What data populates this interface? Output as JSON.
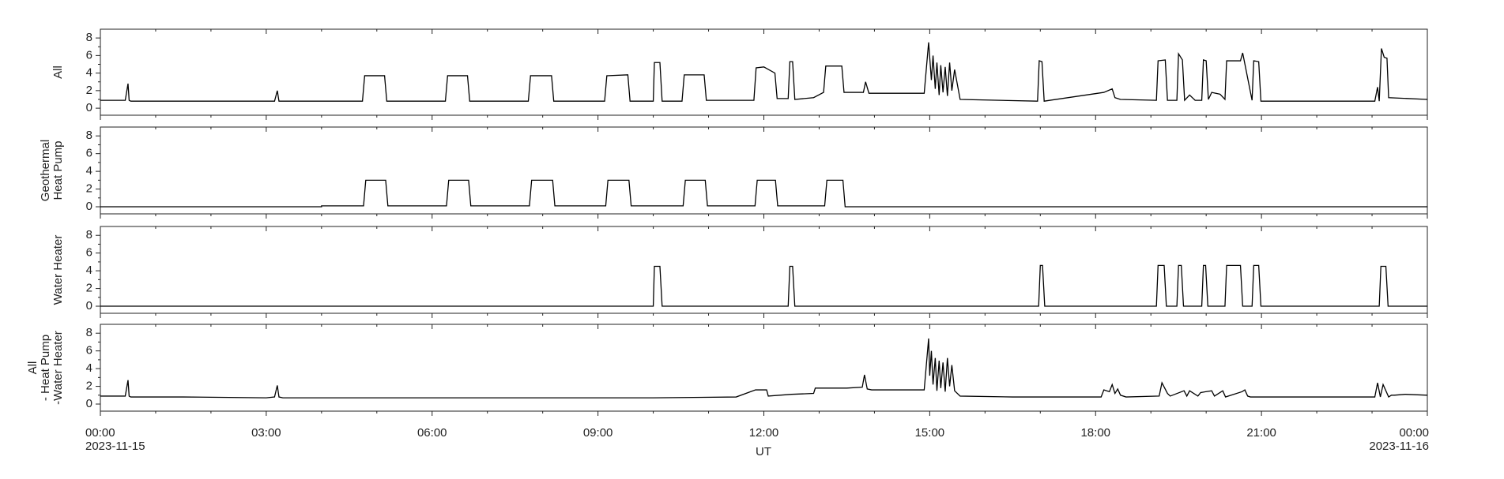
{
  "x_axis": {
    "xlim": [
      0,
      24
    ],
    "xticks": [
      {
        "value": 0,
        "label": "00:00"
      },
      {
        "value": 3,
        "label": "03:00"
      },
      {
        "value": 6,
        "label": "06:00"
      },
      {
        "value": 9,
        "label": "09:00"
      },
      {
        "value": 12,
        "label": "12:00"
      },
      {
        "value": 15,
        "label": "15:00"
      },
      {
        "value": 18,
        "label": "18:00"
      },
      {
        "value": 21,
        "label": "21:00"
      },
      {
        "value": 24,
        "label": "00:00"
      }
    ],
    "minor_xticks": [
      1,
      2,
      4,
      5,
      7,
      8,
      10,
      11,
      13,
      14,
      16,
      17,
      19,
      20,
      22,
      23
    ],
    "label": "UT",
    "start_date": "2023-11-15",
    "end_date": "2023-11-16"
  },
  "chart_data": [
    {
      "type": "line",
      "ylabel": [
        "All"
      ],
      "ylim": [
        -0.8,
        9
      ],
      "yticks": [
        0,
        2,
        4,
        6,
        8
      ],
      "minor_yticks": [
        1,
        3,
        5,
        7
      ],
      "color": "#000000",
      "x": [
        0,
        0.45,
        0.5,
        0.52,
        0.55,
        3.15,
        3.2,
        3.23,
        4.74,
        4.78,
        5.14,
        5.18,
        6.24,
        6.28,
        6.64,
        6.68,
        7.74,
        7.78,
        8.16,
        8.2,
        9.12,
        9.16,
        9.54,
        9.58,
        10.0,
        10.02,
        10.12,
        10.16,
        10.52,
        10.56,
        10.92,
        10.96,
        11.82,
        11.86,
        12.0,
        12.2,
        12.24,
        12.44,
        12.47,
        12.52,
        12.56,
        12.9,
        13.08,
        13.12,
        13.41,
        13.45,
        13.8,
        13.84,
        13.9,
        14.9,
        14.98,
        15.03,
        15.06,
        15.1,
        15.13,
        15.17,
        15.2,
        15.24,
        15.28,
        15.32,
        15.36,
        15.4,
        15.45,
        15.55,
        16.95,
        16.98,
        17.03,
        17.07,
        18.15,
        18.3,
        18.35,
        18.45,
        19.1,
        19.13,
        19.26,
        19.3,
        19.47,
        19.5,
        19.57,
        19.61,
        19.7,
        19.8,
        19.92,
        19.95,
        20.0,
        20.04,
        20.1,
        20.25,
        20.34,
        20.37,
        20.62,
        20.66,
        20.83,
        20.86,
        20.95,
        20.99,
        23.05,
        23.1,
        23.13,
        23.17,
        23.22,
        23.27,
        23.3,
        24
      ],
      "values": [
        0.9,
        0.9,
        2.8,
        0.9,
        0.8,
        0.8,
        2.0,
        0.8,
        0.8,
        3.7,
        3.7,
        0.8,
        0.8,
        3.7,
        3.7,
        0.8,
        0.8,
        3.7,
        3.7,
        0.8,
        0.8,
        3.7,
        3.8,
        0.8,
        0.8,
        5.2,
        5.2,
        0.8,
        0.8,
        3.8,
        3.8,
        0.9,
        0.9,
        4.6,
        4.7,
        4.0,
        1.1,
        1.1,
        5.3,
        5.3,
        1.0,
        1.2,
        1.8,
        4.8,
        4.8,
        1.8,
        1.8,
        3.0,
        1.7,
        1.7,
        7.5,
        3.2,
        6.0,
        2.2,
        5.2,
        1.5,
        4.9,
        1.8,
        4.7,
        1.4,
        5.2,
        2.0,
        4.4,
        1.0,
        0.8,
        5.4,
        5.3,
        0.8,
        1.8,
        2.2,
        1.2,
        1.0,
        0.9,
        5.4,
        5.5,
        0.9,
        0.9,
        6.2,
        5.5,
        0.9,
        1.5,
        0.9,
        0.9,
        5.5,
        5.4,
        1.0,
        1.8,
        1.6,
        1.0,
        5.4,
        5.4,
        6.3,
        0.9,
        5.4,
        5.3,
        0.8,
        0.8,
        2.4,
        0.8,
        6.8,
        5.8,
        5.7,
        1.2,
        1.0
      ]
    },
    {
      "type": "line",
      "ylabel": [
        "Geothermal",
        "Heat Pump"
      ],
      "ylim": [
        -0.8,
        9
      ],
      "yticks": [
        0,
        2,
        4,
        6,
        8
      ],
      "minor_yticks": [
        1,
        3,
        5,
        7
      ],
      "color": "#000000",
      "x": [
        0,
        4.0,
        4.0,
        4.76,
        4.8,
        5.16,
        5.2,
        6.26,
        6.3,
        6.66,
        6.7,
        7.76,
        7.8,
        8.18,
        8.22,
        9.14,
        9.18,
        9.56,
        9.6,
        10.54,
        10.58,
        10.94,
        10.98,
        11.84,
        11.88,
        12.21,
        12.25,
        13.1,
        13.14,
        13.43,
        13.47,
        24
      ],
      "values": [
        0,
        0,
        0.1,
        0.1,
        3.0,
        3.0,
        0.1,
        0.1,
        3.0,
        3.0,
        0.1,
        0.1,
        3.0,
        3.0,
        0.1,
        0.1,
        3.0,
        3.0,
        0.1,
        0.1,
        3.0,
        3.0,
        0.1,
        0.1,
        3.0,
        3.0,
        0.1,
        0.1,
        3.0,
        3.0,
        0,
        0
      ]
    },
    {
      "type": "line",
      "ylabel": [
        "Water Heater"
      ],
      "ylim": [
        -0.8,
        9
      ],
      "yticks": [
        0,
        2,
        4,
        6,
        8
      ],
      "minor_yticks": [
        1,
        3,
        5,
        7
      ],
      "color": "#000000",
      "x": [
        0,
        10.0,
        10.02,
        10.12,
        10.16,
        12.44,
        12.47,
        12.52,
        12.56,
        16.97,
        17.0,
        17.04,
        17.08,
        19.1,
        19.13,
        19.24,
        19.28,
        19.47,
        19.5,
        19.55,
        19.59,
        19.92,
        19.95,
        19.99,
        20.03,
        20.34,
        20.37,
        20.62,
        20.66,
        20.83,
        20.86,
        20.95,
        20.99,
        23.13,
        23.16,
        23.25,
        23.29,
        24
      ],
      "values": [
        0,
        0,
        4.5,
        4.5,
        0,
        0,
        4.5,
        4.5,
        0,
        0,
        4.6,
        4.6,
        0,
        0,
        4.6,
        4.6,
        0,
        0,
        4.6,
        4.6,
        0,
        0,
        4.6,
        4.6,
        0,
        0,
        4.6,
        4.6,
        0,
        0,
        4.6,
        4.6,
        0,
        0,
        4.5,
        4.5,
        0,
        0
      ]
    },
    {
      "type": "line",
      "ylabel": [
        "All",
        "- Heat Pump",
        "-Water Heater"
      ],
      "ylim": [
        -0.8,
        9
      ],
      "yticks": [
        0,
        2,
        4,
        6,
        8
      ],
      "minor_yticks": [
        1,
        3,
        5,
        7
      ],
      "color": "#000000",
      "x": [
        0,
        0.45,
        0.5,
        0.52,
        0.55,
        1.5,
        3.0,
        3.15,
        3.2,
        3.23,
        3.3,
        5.0,
        7.0,
        9.0,
        10.0,
        11.5,
        11.85,
        11.87,
        12.05,
        12.08,
        12.5,
        12.9,
        12.93,
        13.5,
        13.78,
        13.82,
        13.87,
        13.95,
        14.9,
        14.98,
        15.0,
        15.03,
        15.06,
        15.1,
        15.13,
        15.17,
        15.2,
        15.24,
        15.28,
        15.32,
        15.36,
        15.4,
        15.45,
        15.55,
        16.5,
        18.1,
        18.15,
        18.25,
        18.3,
        18.35,
        18.4,
        18.45,
        18.55,
        19.15,
        19.2,
        19.3,
        19.35,
        19.6,
        19.65,
        19.7,
        19.85,
        19.9,
        20.1,
        20.15,
        20.3,
        20.35,
        20.65,
        20.7,
        20.75,
        20.8,
        23.05,
        23.1,
        23.15,
        23.2,
        23.3,
        23.35,
        23.4,
        23.6,
        24
      ],
      "values": [
        0.9,
        0.9,
        2.7,
        0.9,
        0.8,
        0.8,
        0.7,
        0.8,
        2.1,
        0.8,
        0.7,
        0.7,
        0.7,
        0.7,
        0.7,
        0.8,
        1.6,
        1.6,
        1.6,
        0.9,
        1.1,
        1.2,
        1.8,
        1.8,
        1.9,
        3.3,
        1.7,
        1.6,
        1.6,
        7.4,
        3.2,
        6.0,
        2.2,
        5.2,
        1.5,
        4.9,
        1.8,
        4.7,
        1.4,
        5.2,
        2.0,
        4.4,
        1.5,
        0.9,
        0.8,
        0.8,
        1.6,
        1.4,
        2.2,
        1.2,
        1.7,
        1.0,
        0.8,
        0.9,
        2.4,
        1.2,
        0.9,
        1.5,
        0.9,
        1.5,
        0.9,
        1.3,
        1.5,
        0.9,
        1.5,
        0.8,
        1.4,
        1.6,
        0.9,
        0.8,
        0.8,
        2.4,
        0.8,
        2.2,
        0.8,
        1.0,
        1.0,
        1.1,
        1.0
      ]
    }
  ]
}
